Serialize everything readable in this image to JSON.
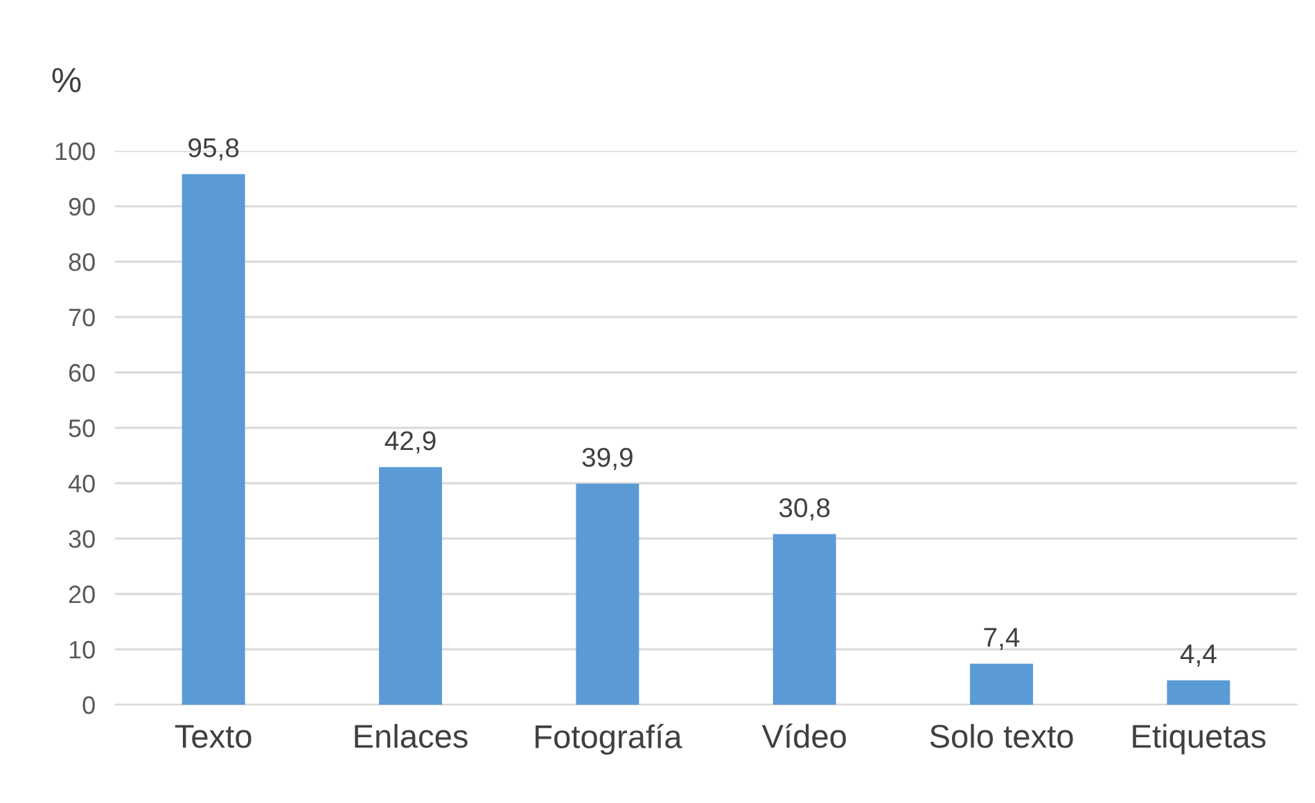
{
  "chart_data": {
    "type": "bar",
    "ylabel": "%",
    "categories": [
      "Texto",
      "Enlaces",
      "Fotografía",
      "Vídeo",
      "Solo texto",
      "Etiquetas"
    ],
    "values": [
      95.8,
      42.9,
      39.9,
      30.8,
      7.4,
      4.4
    ],
    "value_labels": [
      "95,8",
      "42,9",
      "39,9",
      "30,8",
      "7,4",
      "4,4"
    ],
    "color": "#5b9bd5",
    "ylim": [
      0,
      100
    ],
    "yticks": [
      0,
      10,
      20,
      30,
      40,
      50,
      60,
      70,
      80,
      90,
      100
    ],
    "grid": "y",
    "legend": false
  }
}
